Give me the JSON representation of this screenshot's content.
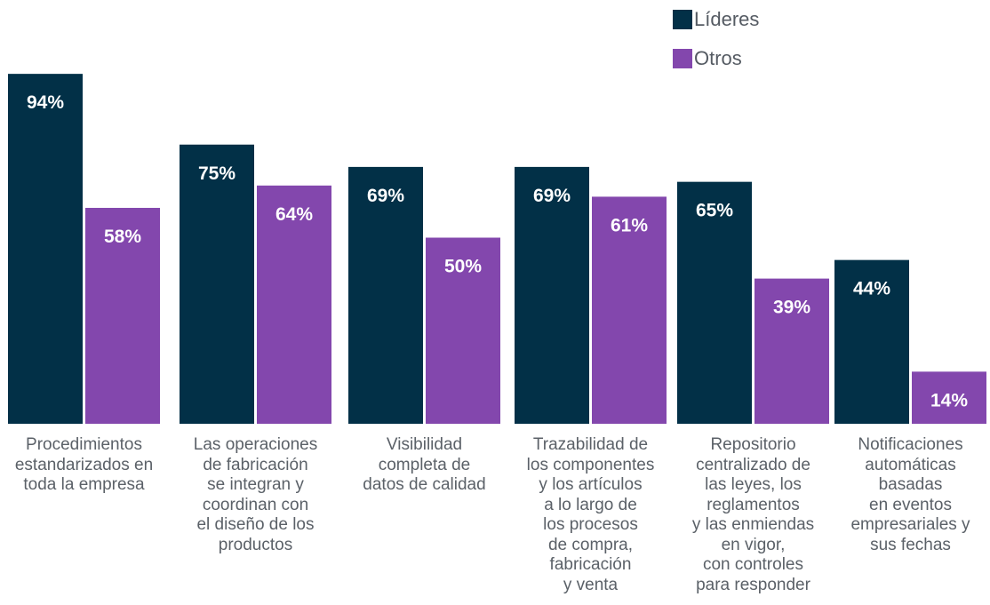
{
  "legend": {
    "leaders": "Líderes",
    "others": "Otros"
  },
  "colors": {
    "leaders": "#023047",
    "others": "#8347AD",
    "label_text": "#FFFFFF",
    "category_text": "#5B6168"
  },
  "chart_data": {
    "type": "bar",
    "title": "",
    "xlabel": "",
    "ylabel": "",
    "ylim": [
      0,
      100
    ],
    "grid": false,
    "legend_position": "top-right",
    "value_suffix": "%",
    "categories": [
      "Procedimientos\nestandarizados en\ntoda la empresa",
      "Las operaciones\nde fabricación\nse integran y\ncoordinan con\nel diseño de los\nproductos",
      "Visibilidad\ncompleta de\ndatos de calidad",
      "Trazabilidad de\nlos componentes\ny los artículos\na lo largo de\nlos procesos\nde compra,\nfabricación\ny venta",
      "Repositorio\ncentralizado de\nlas leyes, los\nreglamentos\ny las enmiendas\nen vigor,\ncon controles\npara responder",
      "Notificaciones\nautomáticas\nbasadas\nen eventos\nempresariales y\nsus fechas"
    ],
    "series": [
      {
        "name": "Líderes",
        "values": [
          94,
          75,
          69,
          69,
          65,
          44
        ]
      },
      {
        "name": "Otros",
        "values": [
          58,
          64,
          50,
          61,
          39,
          14
        ]
      }
    ]
  }
}
